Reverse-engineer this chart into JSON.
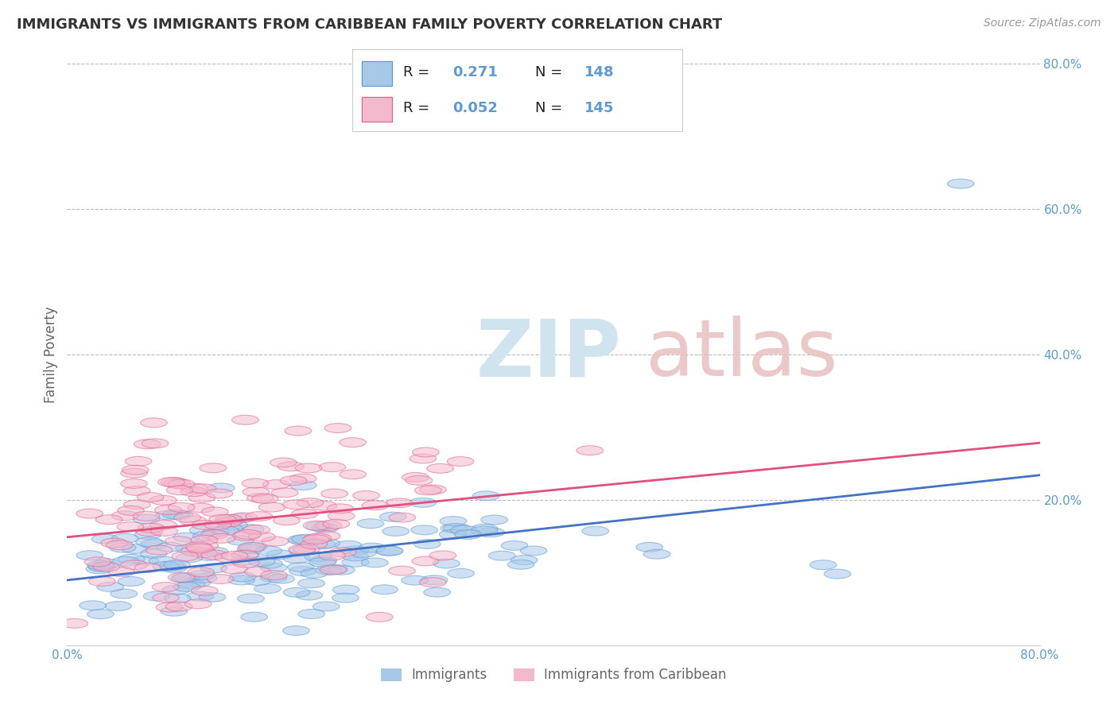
{
  "title": "IMMIGRANTS VS IMMIGRANTS FROM CARIBBEAN FAMILY POVERTY CORRELATION CHART",
  "source": "Source: ZipAtlas.com",
  "ylabel": "Family Poverty",
  "xlim": [
    0,
    0.8
  ],
  "ylim": [
    0,
    0.8
  ],
  "xticks": [
    0.0,
    0.1,
    0.2,
    0.3,
    0.4,
    0.5,
    0.6,
    0.7,
    0.8
  ],
  "yticks": [
    0.0,
    0.2,
    0.4,
    0.6,
    0.8
  ],
  "blue_fill": "#A8C8E8",
  "blue_edge": "#5B9BD5",
  "pink_fill": "#F4B8CC",
  "pink_edge": "#E06090",
  "blue_line_color": "#4472C4",
  "pink_line_color": "#E05080",
  "legend_label1": "Immigrants",
  "legend_label2": "Immigrants from Caribbean",
  "r_blue": 0.271,
  "n_blue": 148,
  "r_pink": 0.052,
  "n_pink": 145,
  "tick_label_color": "#5B9BD5",
  "axis_label_color": "#666666",
  "title_color": "#333333",
  "grid_color": "#BBBBBB",
  "background_color": "#FFFFFF",
  "seed": 42
}
